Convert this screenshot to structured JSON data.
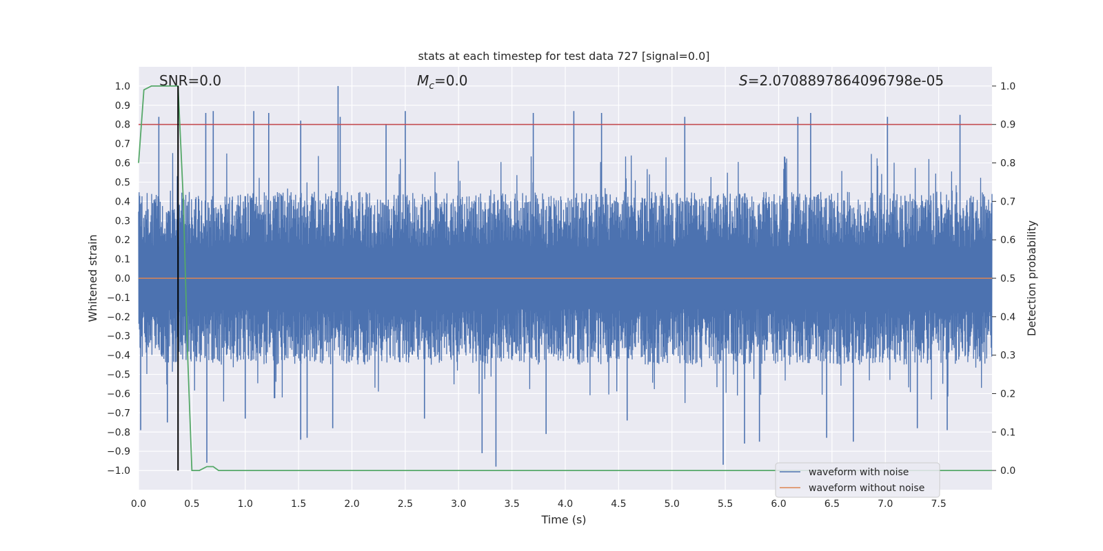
{
  "chart_data": {
    "type": "line",
    "title": "stats at each timestep for test data 727 [signal=0.0]",
    "xlabel": "Time (s)",
    "ylabel": "Whitened strain",
    "ylabel_right": "Detection probability",
    "xlim": [
      0.0,
      8.0
    ],
    "ylim": [
      -1.1,
      1.1
    ],
    "ylim_right": [
      -0.05,
      1.05
    ],
    "x_ticks": [
      "0.0",
      "0.5",
      "1.0",
      "1.5",
      "2.0",
      "2.5",
      "3.0",
      "3.5",
      "4.0",
      "4.5",
      "5.0",
      "5.5",
      "6.0",
      "6.5",
      "7.0",
      "7.5"
    ],
    "x_tick_values": [
      0.0,
      0.5,
      1.0,
      1.5,
      2.0,
      2.5,
      3.0,
      3.5,
      4.0,
      4.5,
      5.0,
      5.5,
      6.0,
      6.5,
      7.0,
      7.5
    ],
    "y_ticks": [
      "1.0",
      "0.9",
      "0.8",
      "0.7",
      "0.6",
      "0.5",
      "0.4",
      "0.3",
      "0.2",
      "0.1",
      "0.0",
      "−0.1",
      "−0.2",
      "−0.3",
      "−0.4",
      "−0.5",
      "−0.6",
      "−0.7",
      "−0.8",
      "−0.9",
      "−1.0"
    ],
    "y_tick_values": [
      1.0,
      0.9,
      0.8,
      0.7,
      0.6,
      0.5,
      0.4,
      0.3,
      0.2,
      0.1,
      0.0,
      -0.1,
      -0.2,
      -0.3,
      -0.4,
      -0.5,
      -0.6,
      -0.7,
      -0.8,
      -0.9,
      -1.0
    ],
    "y_ticks_right": [
      "1.0",
      "0.9",
      "0.8",
      "0.7",
      "0.6",
      "0.5",
      "0.4",
      "0.3",
      "0.2",
      "0.1",
      "0.0"
    ],
    "y_tick_values_right": [
      1.0,
      0.9,
      0.8,
      0.7,
      0.6,
      0.5,
      0.4,
      0.3,
      0.2,
      0.1,
      0.0
    ],
    "annotations": {
      "snr": "SNR=0.0",
      "mc_symbol": "M",
      "mc_subscript": "c",
      "mc_value": "=0.0",
      "s_symbol": "S",
      "s_value": "=2.0708897864096798e-05"
    },
    "series": [
      {
        "name": "waveform with noise",
        "color": "#4c72b0",
        "description": "dense noise, typically within ±0.45 with peaks up to 1.0 at t≈1.87 and down to −0.98 at t≈3.35",
        "noise_envelope": {
          "typical_min": -0.45,
          "typical_max": 0.45,
          "peak_max": 1.0,
          "peak_min": -0.98
        },
        "spikes": [
          {
            "x": 0.02,
            "y": -0.79
          },
          {
            "x": 0.19,
            "y": 0.84
          },
          {
            "x": 0.27,
            "y": -0.75
          },
          {
            "x": 0.64,
            "y": -0.96
          },
          {
            "x": 0.63,
            "y": 0.86
          },
          {
            "x": 0.7,
            "y": 0.87
          },
          {
            "x": 1.0,
            "y": -0.73
          },
          {
            "x": 1.08,
            "y": 0.87
          },
          {
            "x": 1.22,
            "y": 0.86
          },
          {
            "x": 1.52,
            "y": -0.84
          },
          {
            "x": 1.52,
            "y": 0.82
          },
          {
            "x": 1.58,
            "y": -0.83
          },
          {
            "x": 1.82,
            "y": -0.78
          },
          {
            "x": 1.87,
            "y": 1.0
          },
          {
            "x": 1.89,
            "y": 0.84
          },
          {
            "x": 2.32,
            "y": 0.8
          },
          {
            "x": 2.5,
            "y": 0.87
          },
          {
            "x": 2.68,
            "y": -0.73
          },
          {
            "x": 3.22,
            "y": -0.91
          },
          {
            "x": 3.35,
            "y": -0.98
          },
          {
            "x": 3.7,
            "y": 0.86
          },
          {
            "x": 3.82,
            "y": -0.81
          },
          {
            "x": 4.08,
            "y": 0.87
          },
          {
            "x": 4.34,
            "y": 0.86
          },
          {
            "x": 4.58,
            "y": -0.74
          },
          {
            "x": 5.12,
            "y": 0.84
          },
          {
            "x": 5.48,
            "y": -0.97
          },
          {
            "x": 5.68,
            "y": -0.86
          },
          {
            "x": 5.82,
            "y": -0.85
          },
          {
            "x": 6.18,
            "y": 0.84
          },
          {
            "x": 6.3,
            "y": 0.86
          },
          {
            "x": 6.45,
            "y": -0.83
          },
          {
            "x": 6.7,
            "y": -0.85
          },
          {
            "x": 7.02,
            "y": 0.84
          },
          {
            "x": 7.3,
            "y": -0.78
          },
          {
            "x": 7.58,
            "y": -0.79
          },
          {
            "x": 7.7,
            "y": 0.85
          }
        ]
      },
      {
        "name": "waveform without noise",
        "color": "#dd8452",
        "x": [
          0.0,
          8.0
        ],
        "y": [
          0.0,
          0.0
        ]
      },
      {
        "name": "detection probability",
        "color": "#55a868",
        "axis": "right",
        "x": [
          0.0,
          0.05,
          0.12,
          0.2,
          0.3,
          0.37,
          0.42,
          0.46,
          0.5,
          0.57,
          0.64,
          0.7,
          0.75,
          1.0,
          2.0,
          3.0,
          5.0,
          8.0
        ],
        "y": [
          0.8,
          0.99,
          1.0,
          1.0,
          1.0,
          1.0,
          0.7,
          0.3,
          0.0,
          0.0,
          0.01,
          0.01,
          0.0,
          0.0,
          0.0,
          0.0,
          0.0,
          0.0
        ]
      }
    ],
    "threshold_line": {
      "y": 0.8,
      "color": "#c44e52"
    },
    "vertical_marker": {
      "x": 0.37,
      "color": "#000000"
    },
    "legend": {
      "location": "lower right",
      "entries": [
        {
          "label": "waveform with noise",
          "color": "#4c72b0"
        },
        {
          "label": "waveform without noise",
          "color": "#dd8452"
        }
      ]
    },
    "colors": {
      "plot_background": "#eaeaf2",
      "grid": "#ffffff",
      "text": "#262626"
    }
  }
}
